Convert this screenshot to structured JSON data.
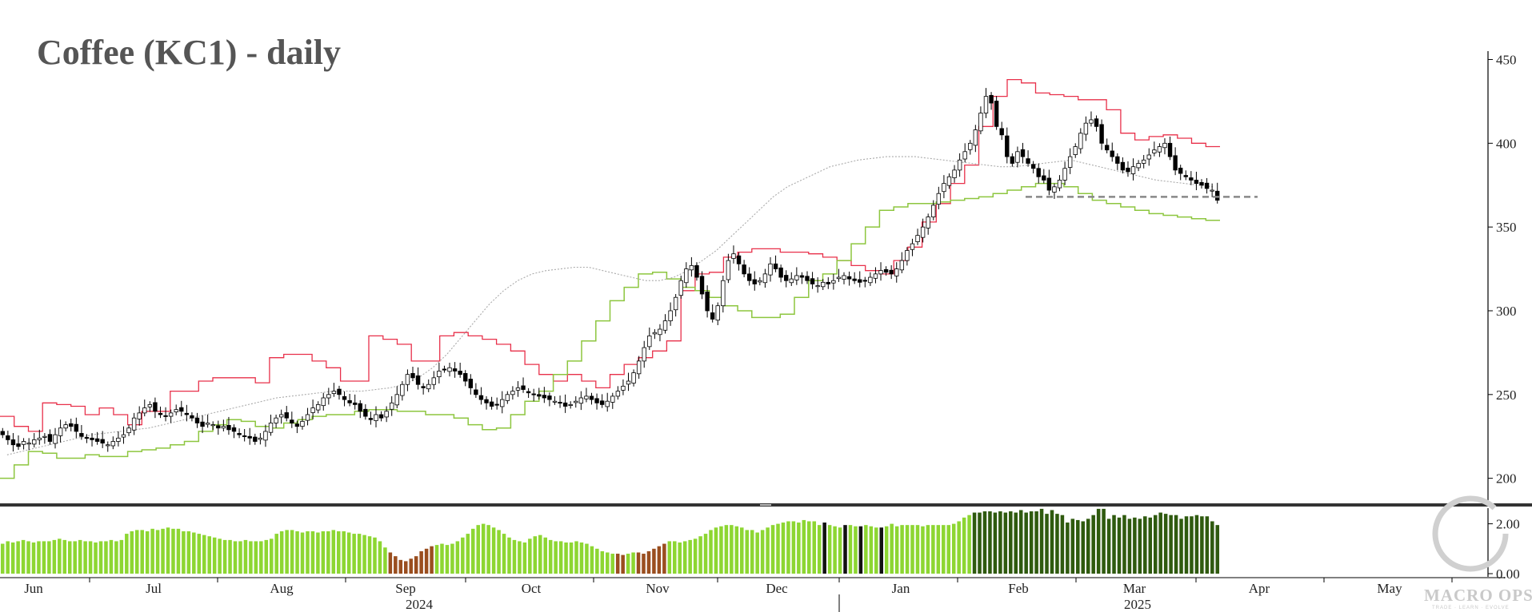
{
  "chart_data": [
    {
      "type": "candlestick",
      "title": "Coffee (KC1) - daily",
      "y_ticks": [
        200,
        250,
        300,
        350,
        400,
        450
      ],
      "ylim": [
        186,
        455
      ],
      "x_labels": [
        "Jun",
        "Jul",
        "Aug",
        "Sep",
        "Oct",
        "Nov",
        "Dec",
        "Jan",
        "Feb",
        "Mar",
        "Apr",
        "May"
      ],
      "year_labels": [
        "2024",
        "2025"
      ],
      "support_level": 368,
      "series": [
        {
          "role": "candles",
          "color_up": "#ffffff",
          "color_down": "#000000",
          "close": [
            226,
            223,
            220,
            219,
            222,
            221,
            223,
            224,
            225,
            222,
            226,
            230,
            232,
            231,
            228,
            225,
            224,
            223,
            222,
            221,
            220,
            222,
            224,
            226,
            230,
            236,
            239,
            242,
            244,
            240,
            238,
            237,
            239,
            241,
            240,
            238,
            236,
            233,
            231,
            233,
            232,
            230,
            231,
            229,
            228,
            226,
            225,
            224,
            222,
            224,
            228,
            233,
            236,
            238,
            236,
            233,
            231,
            234,
            238,
            242,
            244,
            248,
            250,
            252,
            250,
            247,
            245,
            244,
            240,
            237,
            235,
            238,
            236,
            240,
            245,
            250,
            256,
            262,
            260,
            256,
            254,
            256,
            260,
            264,
            265,
            266,
            264,
            262,
            258,
            254,
            250,
            247,
            245,
            243,
            244,
            247,
            250,
            252,
            254,
            253,
            251,
            250,
            249,
            248,
            247,
            246,
            245,
            243,
            244,
            246,
            248,
            249,
            247,
            245,
            244,
            246,
            249,
            252,
            255,
            258,
            263,
            270,
            278,
            285,
            287,
            289,
            294,
            300,
            308,
            318,
            325,
            327,
            320,
            310,
            300,
            295,
            303,
            318,
            330,
            334,
            328,
            322,
            318,
            316,
            318,
            322,
            328,
            325,
            320,
            318,
            319,
            321,
            320,
            318,
            316,
            315,
            317,
            316,
            318,
            320,
            321,
            319,
            318,
            317,
            318,
            320,
            322,
            324,
            323,
            322,
            325,
            330,
            336,
            340,
            345,
            350,
            356,
            363,
            370,
            376,
            380,
            384,
            390,
            395,
            400,
            408,
            418,
            428,
            424,
            410,
            405,
            392,
            388,
            395,
            392,
            388,
            385,
            380,
            378,
            372,
            374,
            378,
            385,
            392,
            398,
            406,
            412,
            414,
            410,
            400,
            396,
            392,
            388,
            384,
            383,
            386,
            388,
            390,
            393,
            396,
            398,
            400,
            392,
            384,
            382,
            380,
            378,
            376,
            375,
            373,
            372,
            366
          ]
        },
        {
          "role": "upper_band",
          "color": "#e8304a",
          "values": [
            237,
            231,
            228,
            245,
            244,
            243,
            238,
            242,
            238,
            232,
            240,
            240,
            252,
            252,
            258,
            260,
            260,
            260,
            257,
            272,
            274,
            274,
            270,
            266,
            258,
            258,
            285,
            283,
            280,
            270,
            270,
            285,
            287,
            285,
            283,
            280,
            276,
            268,
            262,
            258,
            262,
            258,
            254,
            262,
            268,
            272,
            276,
            282,
            312,
            322,
            323,
            332,
            335,
            337,
            337,
            335,
            335,
            334,
            332,
            330,
            327,
            324,
            322,
            330,
            338,
            353,
            364,
            376,
            387,
            410,
            428,
            438,
            436,
            430,
            429,
            428,
            426,
            426,
            420,
            406,
            402,
            404,
            405,
            403,
            400,
            398
          ]
        },
        {
          "role": "lower_band",
          "color": "#8dc63f",
          "values": [
            200,
            208,
            216,
            215,
            212,
            212,
            214,
            213,
            213,
            216,
            217,
            218,
            220,
            222,
            228,
            232,
            235,
            234,
            231,
            230,
            233,
            235,
            237,
            238,
            238,
            240,
            241,
            241,
            240,
            240,
            238,
            238,
            236,
            232,
            229,
            230,
            238,
            246,
            252,
            262,
            270,
            282,
            294,
            306,
            314,
            322,
            323,
            319,
            314,
            312,
            308,
            303,
            300,
            296,
            296,
            298,
            308,
            318,
            322,
            330,
            340,
            350,
            360,
            362,
            364,
            364,
            365,
            366,
            367,
            368,
            370,
            372,
            374,
            376,
            376,
            374,
            370,
            366,
            364,
            362,
            360,
            358,
            357,
            356,
            355,
            354
          ]
        },
        {
          "role": "moving_average",
          "color": "#aaaaaa",
          "values": [
            214,
            216,
            218,
            220,
            222,
            224,
            226,
            227,
            228,
            229,
            230,
            232,
            234,
            236,
            238,
            240,
            242,
            244,
            246,
            248,
            249,
            250,
            251,
            252,
            252,
            252,
            253,
            254,
            256,
            260,
            266,
            274,
            284,
            294,
            304,
            312,
            318,
            322,
            324,
            325,
            326,
            326,
            324,
            322,
            320,
            318,
            318,
            320,
            324,
            330,
            336,
            344,
            352,
            360,
            368,
            374,
            378,
            382,
            386,
            388,
            390,
            391,
            392,
            392,
            392,
            391,
            390,
            389,
            388,
            387,
            386,
            386,
            387,
            388,
            389,
            390,
            388,
            386,
            384,
            382,
            380,
            378,
            377,
            376,
            375,
            374
          ]
        }
      ]
    },
    {
      "type": "bar",
      "role": "indicator_panel",
      "y_ticks": [
        "2.00",
        "0.00"
      ],
      "ylim": [
        0,
        2.5
      ],
      "colors": {
        "light": "#8dd632",
        "dark": "#2f5a0f",
        "brown": "#9a4e1f",
        "black": "#111111"
      },
      "values": [
        1.2,
        1.3,
        1.25,
        1.3,
        1.35,
        1.3,
        1.25,
        1.3,
        1.3,
        1.3,
        1.35,
        1.4,
        1.35,
        1.3,
        1.3,
        1.35,
        1.3,
        1.3,
        1.25,
        1.3,
        1.3,
        1.35,
        1.3,
        1.35,
        1.6,
        1.7,
        1.75,
        1.75,
        1.7,
        1.8,
        1.75,
        1.8,
        1.85,
        1.8,
        1.8,
        1.7,
        1.7,
        1.65,
        1.6,
        1.55,
        1.5,
        1.45,
        1.4,
        1.35,
        1.35,
        1.3,
        1.3,
        1.35,
        1.3,
        1.3,
        1.3,
        1.35,
        1.4,
        1.6,
        1.7,
        1.75,
        1.75,
        1.7,
        1.65,
        1.7,
        1.7,
        1.65,
        1.7,
        1.7,
        1.75,
        1.7,
        1.7,
        1.65,
        1.6,
        1.6,
        1.55,
        1.5,
        1.45,
        1.3,
        1.05,
        0.85,
        0.7,
        0.55,
        0.5,
        0.6,
        0.7,
        0.9,
        1.0,
        1.1,
        1.15,
        1.2,
        1.15,
        1.2,
        1.3,
        1.45,
        1.6,
        1.8,
        1.95,
        2.0,
        1.95,
        1.85,
        1.75,
        1.6,
        1.45,
        1.35,
        1.3,
        1.25,
        1.4,
        1.5,
        1.55,
        1.45,
        1.35,
        1.3,
        1.3,
        1.25,
        1.25,
        1.3,
        1.25,
        1.2,
        1.1,
        1.0,
        0.9,
        0.85,
        0.8,
        0.8,
        0.75,
        0.8,
        0.85,
        0.85,
        0.8,
        0.9,
        1.0,
        1.1,
        1.2,
        1.3,
        1.3,
        1.25,
        1.3,
        1.35,
        1.4,
        1.5,
        1.6,
        1.75,
        1.85,
        1.9,
        1.95,
        1.95,
        1.9,
        1.85,
        1.75,
        1.75,
        1.65,
        1.75,
        1.85,
        1.95,
        2.0,
        2.05,
        2.1,
        2.1,
        2.05,
        2.15,
        2.1,
        2.1,
        1.95,
        2.05,
        1.95,
        1.9,
        1.85,
        1.95,
        1.95,
        1.9,
        1.9,
        1.95,
        1.9,
        1.85,
        1.85,
        1.9,
        2.0,
        1.9,
        1.95,
        1.95,
        1.95,
        1.95,
        1.9,
        1.95,
        1.95,
        1.95,
        1.95,
        1.95,
        2.0,
        2.1,
        2.25,
        2.35,
        2.45,
        2.45,
        2.5,
        2.5,
        2.45,
        2.5,
        2.45,
        2.5,
        2.45,
        2.55,
        2.45,
        2.5,
        2.5,
        2.6,
        2.4,
        2.55,
        2.4,
        2.35,
        2.05,
        2.2,
        2.15,
        2.1,
        2.2,
        2.35,
        2.6,
        2.6,
        2.2,
        2.35,
        2.25,
        2.35,
        2.2,
        2.25,
        2.2,
        2.3,
        2.25,
        2.35,
        2.45,
        2.4,
        2.35,
        2.35,
        2.2,
        2.3,
        2.3,
        2.35,
        2.3,
        2.3,
        2.1,
        1.95
      ],
      "bar_colors": "light light light light light light light light light light light light light light light light light light light light light light light light light light light light light light light light light light light light light light light light light light light light light light light light light light light light light light light light light light light light light light light light light light light light light light light light light light light brown brown brown brown brown brown brown brown brown light light light light light light light light light light light light light light light light light light light light light light light light light light light light light light light light light light light brown brown light light brown brown brown brown brown brown light light light light light light light light light light light light light light light light light light light light light light light light light light light light light light black light light light black light light black light light light black light light light light light light light light light light light light light light light light light dark dark dark dark dark dark dark dark dark dark dark dark dark dark dark dark dark dark dark dark dark dark dark dark dark dark dark dark dark dark dark dark dark dark dark dark dark dark dark dark dark dark dark dark dark dark dark dark dark dark dark dark dark dark dark dark dark dark dark dark dark dark dark dark dark dark"
    }
  ],
  "logo": {
    "name": "MACRO OPS",
    "tagline": "TRADE · LEARN · EVOLVE"
  }
}
